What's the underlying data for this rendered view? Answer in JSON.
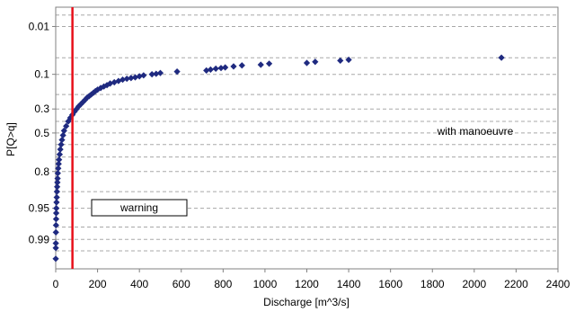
{
  "chart_data": {
    "type": "scatter",
    "title": "",
    "xlabel": "Discharge [m^3/s]",
    "ylabel": "P[Q>q]",
    "xlim": [
      0,
      2400
    ],
    "x_ticks": [
      "0",
      "200",
      "400",
      "600",
      "800",
      "1000",
      "1200",
      "1400",
      "1600",
      "1800",
      "2000",
      "2200",
      "2400"
    ],
    "y_scale": "normal-probability",
    "y_tick_labels": [
      "0.01",
      "0.1",
      "0.3",
      "0.5",
      "0.8",
      "0.95",
      "0.99"
    ],
    "y_gridlines": [
      0.005,
      0.01,
      0.05,
      0.1,
      0.2,
      0.3,
      0.4,
      0.5,
      0.6,
      0.7,
      0.8,
      0.9,
      0.95,
      0.98,
      0.99,
      0.995
    ],
    "grid": "dashed horizontal",
    "marker": "diamond",
    "colors": {
      "points": "#1f2a80",
      "threshold": "#e8101a",
      "grid": "#a8a8a8",
      "axes": "#808080"
    },
    "threshold": {
      "x": 80,
      "label": "warning"
    },
    "annotations": [
      "with manoeuvre"
    ],
    "points": [
      [
        2130,
        0.05
      ],
      [
        1400,
        0.055
      ],
      [
        1360,
        0.057
      ],
      [
        1240,
        0.06
      ],
      [
        1200,
        0.063
      ],
      [
        1020,
        0.065
      ],
      [
        980,
        0.068
      ],
      [
        890,
        0.07
      ],
      [
        850,
        0.073
      ],
      [
        810,
        0.076
      ],
      [
        790,
        0.078
      ],
      [
        765,
        0.08
      ],
      [
        740,
        0.083
      ],
      [
        720,
        0.086
      ],
      [
        580,
        0.09
      ],
      [
        500,
        0.095
      ],
      [
        480,
        0.098
      ],
      [
        460,
        0.1
      ],
      [
        420,
        0.104
      ],
      [
        400,
        0.108
      ],
      [
        380,
        0.112
      ],
      [
        360,
        0.115
      ],
      [
        340,
        0.118
      ],
      [
        320,
        0.122
      ],
      [
        300,
        0.128
      ],
      [
        280,
        0.134
      ],
      [
        260,
        0.14
      ],
      [
        245,
        0.148
      ],
      [
        230,
        0.155
      ],
      [
        215,
        0.163
      ],
      [
        200,
        0.172
      ],
      [
        190,
        0.18
      ],
      [
        180,
        0.19
      ],
      [
        170,
        0.2
      ],
      [
        160,
        0.21
      ],
      [
        150,
        0.22
      ],
      [
        140,
        0.235
      ],
      [
        130,
        0.25
      ],
      [
        120,
        0.265
      ],
      [
        110,
        0.28
      ],
      [
        100,
        0.3
      ],
      [
        90,
        0.32
      ],
      [
        80,
        0.345
      ],
      [
        70,
        0.37
      ],
      [
        60,
        0.4
      ],
      [
        50,
        0.44
      ],
      [
        40,
        0.48
      ],
      [
        35,
        0.52
      ],
      [
        30,
        0.56
      ],
      [
        26,
        0.6
      ],
      [
        22,
        0.64
      ],
      [
        19,
        0.68
      ],
      [
        16,
        0.72
      ],
      [
        14,
        0.75
      ],
      [
        12,
        0.78
      ],
      [
        10,
        0.81
      ],
      [
        9,
        0.84
      ],
      [
        8,
        0.86
      ],
      [
        7,
        0.88
      ],
      [
        6,
        0.9
      ],
      [
        5,
        0.92
      ],
      [
        4,
        0.935
      ],
      [
        3,
        0.95
      ],
      [
        2.5,
        0.96
      ],
      [
        2,
        0.97
      ],
      [
        1.5,
        0.978
      ],
      [
        1,
        0.985
      ],
      [
        0.6,
        0.992
      ],
      [
        0.4,
        0.994
      ],
      [
        0.2,
        0.997
      ]
    ]
  }
}
